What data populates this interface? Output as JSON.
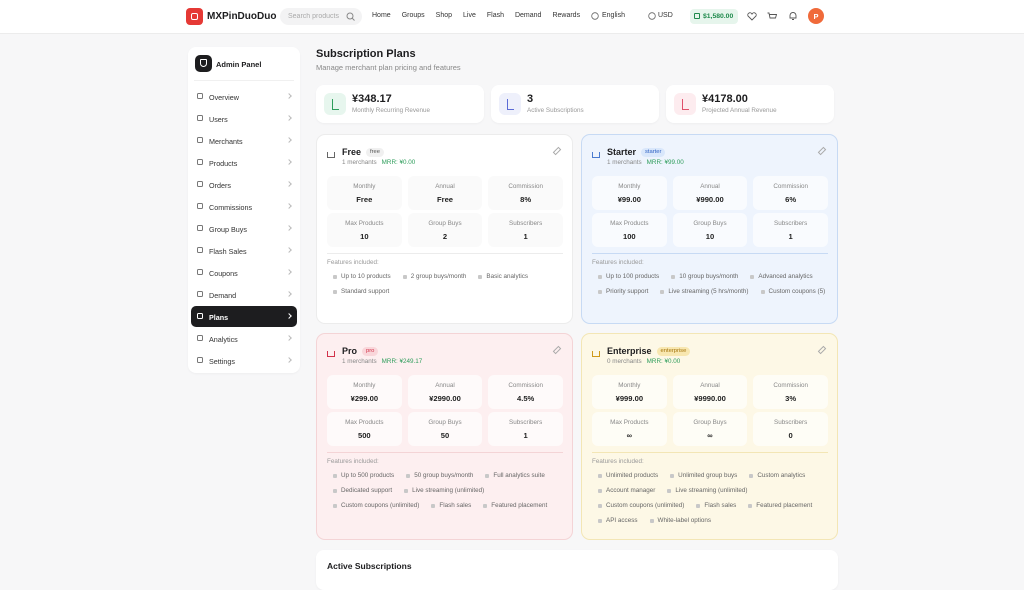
{
  "header": {
    "brand": "MXPinDuoDuo",
    "search_placeholder": "Search products",
    "nav": [
      "Home",
      "Groups",
      "Shop",
      "Live",
      "Flash",
      "Demand",
      "Rewards"
    ],
    "language": "English",
    "currency": "USD",
    "balance": "$1,580.00",
    "avatar": "P"
  },
  "sidebar": {
    "title": "Admin Panel",
    "items": [
      {
        "label": "Overview"
      },
      {
        "label": "Users"
      },
      {
        "label": "Merchants"
      },
      {
        "label": "Products"
      },
      {
        "label": "Orders"
      },
      {
        "label": "Commissions"
      },
      {
        "label": "Group Buys"
      },
      {
        "label": "Flash Sales"
      },
      {
        "label": "Coupons"
      },
      {
        "label": "Demand"
      },
      {
        "label": "Plans",
        "active": true
      },
      {
        "label": "Analytics"
      },
      {
        "label": "Settings"
      }
    ]
  },
  "main": {
    "title": "Subscription Plans",
    "subtitle": "Manage merchant plan pricing and features",
    "stats": [
      {
        "value": "¥348.17",
        "label": "Monthly Recurring Revenue"
      },
      {
        "value": "3",
        "label": "Active Subscriptions"
      },
      {
        "value": "¥4178.00",
        "label": "Projected Annual Revenue"
      }
    ],
    "plans": [
      {
        "name": "Free",
        "badge": "free",
        "merchants": "1 merchants",
        "mrr": "MRR: ¥0.00",
        "stats": [
          {
            "label": "Monthly",
            "value": "Free"
          },
          {
            "label": "Annual",
            "value": "Free"
          },
          {
            "label": "Commission",
            "value": "8%"
          },
          {
            "label": "Max Products",
            "value": "10"
          },
          {
            "label": "Group Buys",
            "value": "2"
          },
          {
            "label": "Subscribers",
            "value": "1"
          }
        ],
        "features_heading": "Features included:",
        "features": [
          "Up to 10 products",
          "2 group buys/month",
          "Basic analytics",
          "Standard support"
        ]
      },
      {
        "name": "Starter",
        "badge": "starter",
        "merchants": "1 merchants",
        "mrr": "MRR: ¥99.00",
        "stats": [
          {
            "label": "Monthly",
            "value": "¥99.00"
          },
          {
            "label": "Annual",
            "value": "¥990.00"
          },
          {
            "label": "Commission",
            "value": "6%"
          },
          {
            "label": "Max Products",
            "value": "100"
          },
          {
            "label": "Group Buys",
            "value": "10"
          },
          {
            "label": "Subscribers",
            "value": "1"
          }
        ],
        "features_heading": "Features included:",
        "features": [
          "Up to 100 products",
          "10 group buys/month",
          "Advanced analytics",
          "Priority support",
          "Live streaming (5 hrs/month)",
          "Custom coupons (5)"
        ]
      },
      {
        "name": "Pro",
        "badge": "pro",
        "merchants": "1 merchants",
        "mrr": "MRR: ¥249.17",
        "stats": [
          {
            "label": "Monthly",
            "value": "¥299.00"
          },
          {
            "label": "Annual",
            "value": "¥2990.00"
          },
          {
            "label": "Commission",
            "value": "4.5%"
          },
          {
            "label": "Max Products",
            "value": "500"
          },
          {
            "label": "Group Buys",
            "value": "50"
          },
          {
            "label": "Subscribers",
            "value": "1"
          }
        ],
        "features_heading": "Features included:",
        "features": [
          "Up to 500 products",
          "50 group buys/month",
          "Full analytics suite",
          "Dedicated support",
          "Live streaming (unlimited)",
          "Custom coupons (unlimited)",
          "Flash sales",
          "Featured placement"
        ]
      },
      {
        "name": "Enterprise",
        "badge": "enterprise",
        "merchants": "0 merchants",
        "mrr": "MRR: ¥0.00",
        "stats": [
          {
            "label": "Monthly",
            "value": "¥999.00"
          },
          {
            "label": "Annual",
            "value": "¥9990.00"
          },
          {
            "label": "Commission",
            "value": "3%"
          },
          {
            "label": "Max Products",
            "value": "∞"
          },
          {
            "label": "Group Buys",
            "value": "∞"
          },
          {
            "label": "Subscribers",
            "value": "0"
          }
        ],
        "features_heading": "Features included:",
        "features": [
          "Unlimited products",
          "Unlimited group buys",
          "Custom analytics",
          "Account manager",
          "Live streaming (unlimited)",
          "Custom coupons (unlimited)",
          "Flash sales",
          "Featured placement",
          "API access",
          "White-label options"
        ]
      }
    ],
    "active_subscriptions_title": "Active Subscriptions"
  }
}
